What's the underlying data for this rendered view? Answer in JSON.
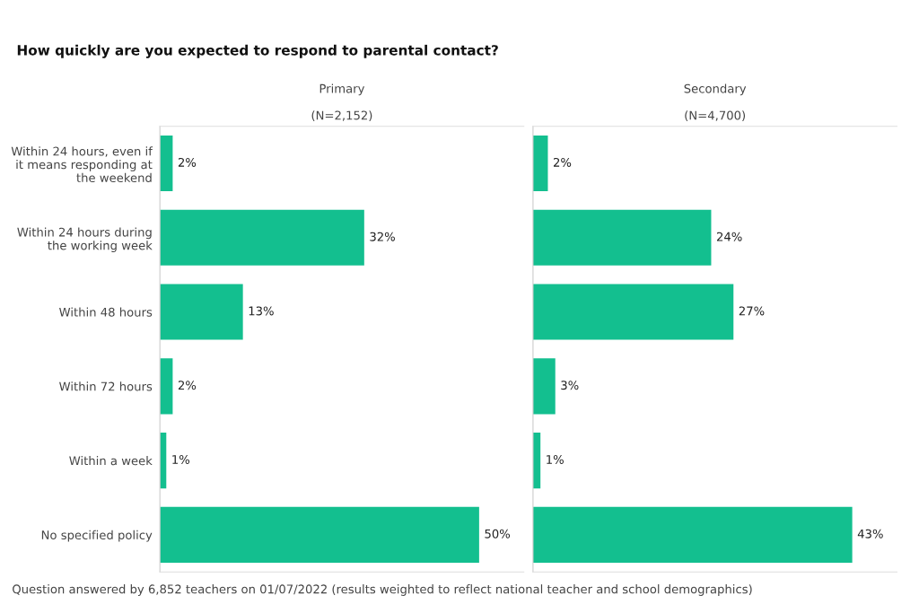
{
  "chart_data": [
    {
      "type": "bar",
      "orientation": "horizontal",
      "title": "Primary",
      "subtitle": "(N=2,152)",
      "annotations": [
        "How quickly are you expected to respond to parental contact?",
        "Question answered by 6,852 teachers on 01/07/2022 (results weighted to reflect national teacher and school demographics)"
      ],
      "categories": [
        "Within 24 hours, even if it means responding at the weekend",
        "Within 24 hours during the working week",
        "Within 48 hours",
        "Within 72 hours",
        "Within a week",
        "No specified policy"
      ],
      "values": [
        2,
        32,
        13,
        2,
        1,
        50
      ],
      "value_labels": [
        "2%",
        "32%",
        "13%",
        "2%",
        "1%",
        "50%"
      ],
      "color": "#13bf8f",
      "tick_labels": "y"
    },
    {
      "type": "bar",
      "orientation": "horizontal",
      "title": "Secondary",
      "subtitle": "(N=4,700)",
      "categories": [
        null,
        null,
        null,
        null,
        null,
        null
      ],
      "values": [
        2,
        24,
        27,
        3,
        1,
        43
      ],
      "value_labels": [
        "2%",
        "24%",
        "27%",
        "3%",
        "1%",
        "43%"
      ],
      "color": "#13bf8f",
      "tick_labels": false
    }
  ]
}
